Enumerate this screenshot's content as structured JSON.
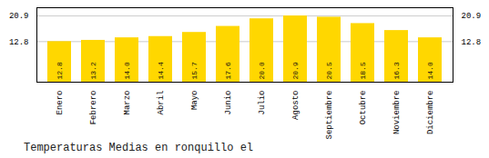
{
  "chart_data": {
    "type": "bar",
    "title": "Temperaturas Medias en ronquillo el",
    "categories": [
      "Enero",
      "Febrero",
      "Marzo",
      "Abril",
      "Mayo",
      "Junio",
      "Julio",
      "Agosto",
      "Septiembre",
      "Octubre",
      "Noviembre",
      "Diciembre"
    ],
    "values": [
      12.8,
      13.2,
      14.0,
      14.4,
      15.7,
      17.6,
      20.0,
      20.9,
      20.5,
      18.5,
      16.3,
      14.0
    ],
    "value_labels": [
      "12.8",
      "13.2",
      "14.0",
      "14.4",
      "15.7",
      "17.6",
      "20.0",
      "20.9",
      "20.5",
      "18.5",
      "16.3",
      "14.0"
    ],
    "color": "#FFD700",
    "ylim": [
      0.0,
      23.5
    ],
    "yticks": [
      12.8,
      20.9
    ],
    "grid": true,
    "data_labels": true
  }
}
